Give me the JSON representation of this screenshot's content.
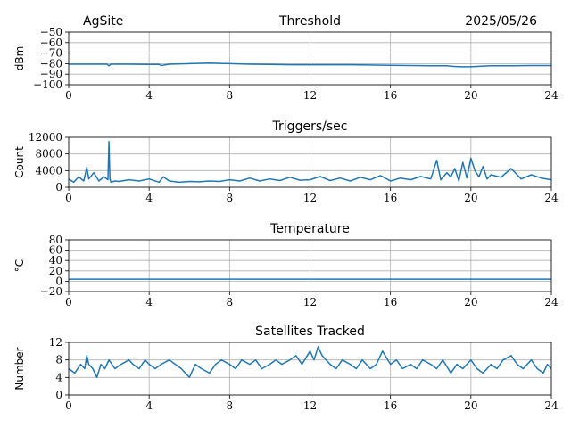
{
  "header": {
    "site": "AgSite",
    "date": "2025/05/26"
  },
  "colors": {
    "series": "#1f77b4",
    "grid": "#b0b0b0"
  },
  "chart_data": [
    {
      "type": "line",
      "title": "Threshold",
      "xlabel": "",
      "ylabel": "dBm",
      "xlim": [
        0,
        24
      ],
      "ylim": [
        -100,
        -50
      ],
      "x_ticks": [
        "0",
        "4",
        "8",
        "12",
        "16",
        "20",
        "24"
      ],
      "y_ticks": [
        "−50",
        "−60",
        "−70",
        "−80",
        "−90",
        "−100"
      ],
      "y_tick_values": [
        -50,
        -60,
        -70,
        -80,
        -90,
        -100
      ],
      "grid": true,
      "series": [
        {
          "x": [
            0,
            1,
            1.9,
            2,
            2.1,
            3,
            4,
            4.5,
            4.6,
            5,
            6,
            7,
            8,
            9,
            10,
            11,
            12,
            13,
            14,
            15,
            16,
            17,
            18,
            18.8,
            19,
            19.5,
            20,
            20.5,
            21,
            22,
            23,
            24
          ],
          "y": [
            -80.5,
            -80.5,
            -80.5,
            -82,
            -80.5,
            -80.5,
            -80.8,
            -80.8,
            -81.8,
            -80.5,
            -80,
            -79.5,
            -80,
            -80.5,
            -80.8,
            -81,
            -81,
            -81,
            -81,
            -81.3,
            -81.5,
            -81.8,
            -82,
            -82,
            -82.5,
            -83,
            -83,
            -82.5,
            -82,
            -82,
            -81.8,
            -81.8
          ]
        }
      ]
    },
    {
      "type": "line",
      "title": "Triggers/sec",
      "xlabel": "",
      "ylabel": "Count",
      "xlim": [
        0,
        24
      ],
      "ylim": [
        0,
        12000
      ],
      "x_ticks": [
        "0",
        "4",
        "8",
        "12",
        "16",
        "20",
        "24"
      ],
      "y_ticks": [
        "0",
        "4000",
        "8000",
        "12000"
      ],
      "y_tick_values": [
        0,
        4000,
        8000,
        12000
      ],
      "grid": true,
      "series": [
        {
          "x": [
            0,
            0.25,
            0.5,
            0.75,
            0.9,
            1.0,
            1.25,
            1.5,
            1.75,
            1.95,
            2.0,
            2.05,
            2.1,
            2.3,
            2.5,
            3,
            3.5,
            4,
            4.5,
            4.7,
            5,
            5.5,
            6,
            6.5,
            7,
            7.5,
            8,
            8.5,
            9,
            9.5,
            10,
            10.5,
            11,
            11.5,
            12,
            12.5,
            13,
            13.5,
            14,
            14.5,
            15,
            15.5,
            16,
            16.5,
            17,
            17.5,
            18,
            18.3,
            18.5,
            18.8,
            19,
            19.2,
            19.4,
            19.6,
            19.8,
            20,
            20.2,
            20.4,
            20.6,
            20.8,
            21,
            21.5,
            22,
            22.5,
            23,
            23.5,
            24
          ],
          "y": [
            2000,
            1200,
            2500,
            1500,
            4800,
            2000,
            3500,
            1500,
            2500,
            1800,
            11000,
            2000,
            1200,
            1500,
            1400,
            1800,
            1500,
            2000,
            1200,
            2500,
            1500,
            1200,
            1400,
            1300,
            1500,
            1400,
            1800,
            1500,
            2200,
            1500,
            2000,
            1600,
            2400,
            1700,
            1800,
            2600,
            1600,
            2200,
            1500,
            2400,
            1800,
            2800,
            1500,
            2200,
            1800,
            2600,
            2000,
            6500,
            1800,
            3500,
            2500,
            4500,
            1500,
            6000,
            2200,
            7000,
            4000,
            2500,
            5000,
            2000,
            3000,
            2400,
            4500,
            2000,
            3000,
            2200,
            1800
          ]
        }
      ]
    },
    {
      "type": "line",
      "title": "Temperature",
      "xlabel": "",
      "ylabel": "°C",
      "xlim": [
        0,
        24
      ],
      "ylim": [
        -20,
        80
      ],
      "x_ticks": [
        "0",
        "4",
        "8",
        "12",
        "16",
        "20",
        "24"
      ],
      "y_ticks": [
        "−20",
        "0",
        "20",
        "40",
        "60",
        "80"
      ],
      "y_tick_values": [
        -20,
        0,
        20,
        40,
        60,
        80
      ],
      "grid": true,
      "series": [
        {
          "x": [
            0,
            24
          ],
          "y": [
            4,
            4
          ]
        }
      ]
    },
    {
      "type": "line",
      "title": "Satellites Tracked",
      "xlabel": "",
      "ylabel": "Number",
      "xlim": [
        0,
        24
      ],
      "ylim": [
        0,
        12
      ],
      "x_ticks": [
        "0",
        "4",
        "8",
        "12",
        "16",
        "20",
        "24"
      ],
      "y_ticks": [
        "0",
        "4",
        "8",
        "12"
      ],
      "y_tick_values": [
        0,
        4,
        8,
        12
      ],
      "grid": true,
      "series": [
        {
          "x": [
            0,
            0.3,
            0.6,
            0.8,
            0.9,
            1.0,
            1.2,
            1.4,
            1.6,
            1.8,
            2.0,
            2.3,
            2.6,
            3.0,
            3.2,
            3.5,
            3.8,
            4.0,
            4.3,
            4.6,
            5.0,
            5.3,
            5.6,
            6.0,
            6.3,
            6.6,
            7.0,
            7.3,
            7.6,
            8.0,
            8.3,
            8.6,
            9.0,
            9.3,
            9.6,
            10.0,
            10.3,
            10.6,
            11.0,
            11.3,
            11.6,
            12.0,
            12.2,
            12.4,
            12.6,
            12.8,
            13.0,
            13.3,
            13.6,
            14.0,
            14.3,
            14.6,
            15.0,
            15.3,
            15.6,
            16.0,
            16.3,
            16.6,
            17.0,
            17.3,
            17.6,
            18.0,
            18.3,
            18.6,
            19.0,
            19.3,
            19.6,
            20.0,
            20.3,
            20.6,
            21.0,
            21.3,
            21.6,
            22.0,
            22.3,
            22.6,
            23.0,
            23.3,
            23.6,
            23.8,
            24
          ],
          "y": [
            6,
            5,
            7,
            6,
            9,
            7,
            6,
            4,
            7,
            6,
            8,
            6,
            7,
            8,
            7,
            6,
            8,
            7,
            6,
            7,
            8,
            7,
            6,
            4,
            7,
            6,
            5,
            7,
            8,
            7,
            6,
            8,
            7,
            8,
            6,
            7,
            8,
            7,
            8,
            9,
            7,
            10,
            8,
            11,
            9,
            8,
            7,
            6,
            8,
            7,
            6,
            8,
            6,
            7,
            10,
            7,
            8,
            6,
            7,
            6,
            8,
            7,
            6,
            8,
            5,
            7,
            6,
            8,
            6,
            5,
            7,
            6,
            8,
            9,
            7,
            6,
            8,
            6,
            5,
            7,
            6
          ]
        }
      ]
    }
  ]
}
